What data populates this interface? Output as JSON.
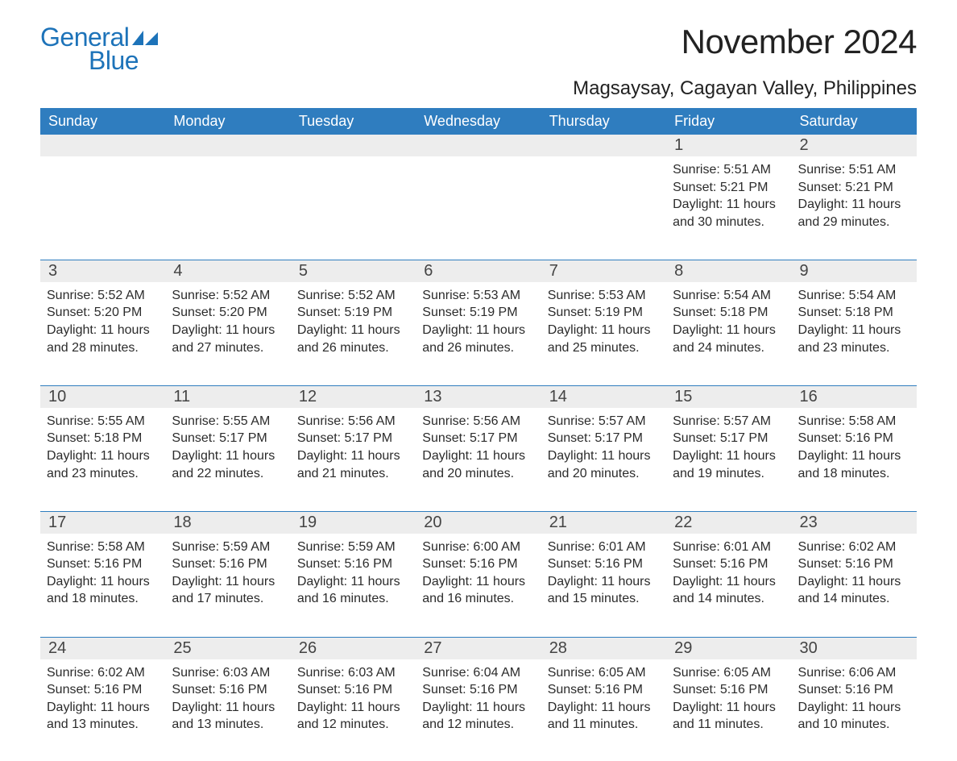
{
  "brand": {
    "part1": "General",
    "part2": "Blue"
  },
  "colors": {
    "brand": "#1d73b9",
    "header_bg": "#2f7dbf",
    "header_fg": "#ffffff",
    "daynum_bg": "#ededed",
    "page_bg": "#ffffff",
    "text": "#2b2b2b"
  },
  "typography": {
    "title_fontsize": 42,
    "location_fontsize": 24,
    "dayheader_fontsize": 18,
    "daynum_fontsize": 20,
    "body_fontsize": 16
  },
  "title": "November 2024",
  "location": "Magsaysay, Cagayan Valley, Philippines",
  "day_headers": [
    "Sunday",
    "Monday",
    "Tuesday",
    "Wednesday",
    "Thursday",
    "Friday",
    "Saturday"
  ],
  "weeks": [
    [
      null,
      null,
      null,
      null,
      null,
      {
        "day": "1",
        "sunrise": "5:51 AM",
        "sunset": "5:21 PM",
        "daylight": "11 hours and 30 minutes."
      },
      {
        "day": "2",
        "sunrise": "5:51 AM",
        "sunset": "5:21 PM",
        "daylight": "11 hours and 29 minutes."
      }
    ],
    [
      {
        "day": "3",
        "sunrise": "5:52 AM",
        "sunset": "5:20 PM",
        "daylight": "11 hours and 28 minutes."
      },
      {
        "day": "4",
        "sunrise": "5:52 AM",
        "sunset": "5:20 PM",
        "daylight": "11 hours and 27 minutes."
      },
      {
        "day": "5",
        "sunrise": "5:52 AM",
        "sunset": "5:19 PM",
        "daylight": "11 hours and 26 minutes."
      },
      {
        "day": "6",
        "sunrise": "5:53 AM",
        "sunset": "5:19 PM",
        "daylight": "11 hours and 26 minutes."
      },
      {
        "day": "7",
        "sunrise": "5:53 AM",
        "sunset": "5:19 PM",
        "daylight": "11 hours and 25 minutes."
      },
      {
        "day": "8",
        "sunrise": "5:54 AM",
        "sunset": "5:18 PM",
        "daylight": "11 hours and 24 minutes."
      },
      {
        "day": "9",
        "sunrise": "5:54 AM",
        "sunset": "5:18 PM",
        "daylight": "11 hours and 23 minutes."
      }
    ],
    [
      {
        "day": "10",
        "sunrise": "5:55 AM",
        "sunset": "5:18 PM",
        "daylight": "11 hours and 23 minutes."
      },
      {
        "day": "11",
        "sunrise": "5:55 AM",
        "sunset": "5:17 PM",
        "daylight": "11 hours and 22 minutes."
      },
      {
        "day": "12",
        "sunrise": "5:56 AM",
        "sunset": "5:17 PM",
        "daylight": "11 hours and 21 minutes."
      },
      {
        "day": "13",
        "sunrise": "5:56 AM",
        "sunset": "5:17 PM",
        "daylight": "11 hours and 20 minutes."
      },
      {
        "day": "14",
        "sunrise": "5:57 AM",
        "sunset": "5:17 PM",
        "daylight": "11 hours and 20 minutes."
      },
      {
        "day": "15",
        "sunrise": "5:57 AM",
        "sunset": "5:17 PM",
        "daylight": "11 hours and 19 minutes."
      },
      {
        "day": "16",
        "sunrise": "5:58 AM",
        "sunset": "5:16 PM",
        "daylight": "11 hours and 18 minutes."
      }
    ],
    [
      {
        "day": "17",
        "sunrise": "5:58 AM",
        "sunset": "5:16 PM",
        "daylight": "11 hours and 18 minutes."
      },
      {
        "day": "18",
        "sunrise": "5:59 AM",
        "sunset": "5:16 PM",
        "daylight": "11 hours and 17 minutes."
      },
      {
        "day": "19",
        "sunrise": "5:59 AM",
        "sunset": "5:16 PM",
        "daylight": "11 hours and 16 minutes."
      },
      {
        "day": "20",
        "sunrise": "6:00 AM",
        "sunset": "5:16 PM",
        "daylight": "11 hours and 16 minutes."
      },
      {
        "day": "21",
        "sunrise": "6:01 AM",
        "sunset": "5:16 PM",
        "daylight": "11 hours and 15 minutes."
      },
      {
        "day": "22",
        "sunrise": "6:01 AM",
        "sunset": "5:16 PM",
        "daylight": "11 hours and 14 minutes."
      },
      {
        "day": "23",
        "sunrise": "6:02 AM",
        "sunset": "5:16 PM",
        "daylight": "11 hours and 14 minutes."
      }
    ],
    [
      {
        "day": "24",
        "sunrise": "6:02 AM",
        "sunset": "5:16 PM",
        "daylight": "11 hours and 13 minutes."
      },
      {
        "day": "25",
        "sunrise": "6:03 AM",
        "sunset": "5:16 PM",
        "daylight": "11 hours and 13 minutes."
      },
      {
        "day": "26",
        "sunrise": "6:03 AM",
        "sunset": "5:16 PM",
        "daylight": "11 hours and 12 minutes."
      },
      {
        "day": "27",
        "sunrise": "6:04 AM",
        "sunset": "5:16 PM",
        "daylight": "11 hours and 12 minutes."
      },
      {
        "day": "28",
        "sunrise": "6:05 AM",
        "sunset": "5:16 PM",
        "daylight": "11 hours and 11 minutes."
      },
      {
        "day": "29",
        "sunrise": "6:05 AM",
        "sunset": "5:16 PM",
        "daylight": "11 hours and 11 minutes."
      },
      {
        "day": "30",
        "sunrise": "6:06 AM",
        "sunset": "5:16 PM",
        "daylight": "11 hours and 10 minutes."
      }
    ]
  ],
  "labels": {
    "sunrise": "Sunrise:",
    "sunset": "Sunset:",
    "daylight": "Daylight:"
  }
}
